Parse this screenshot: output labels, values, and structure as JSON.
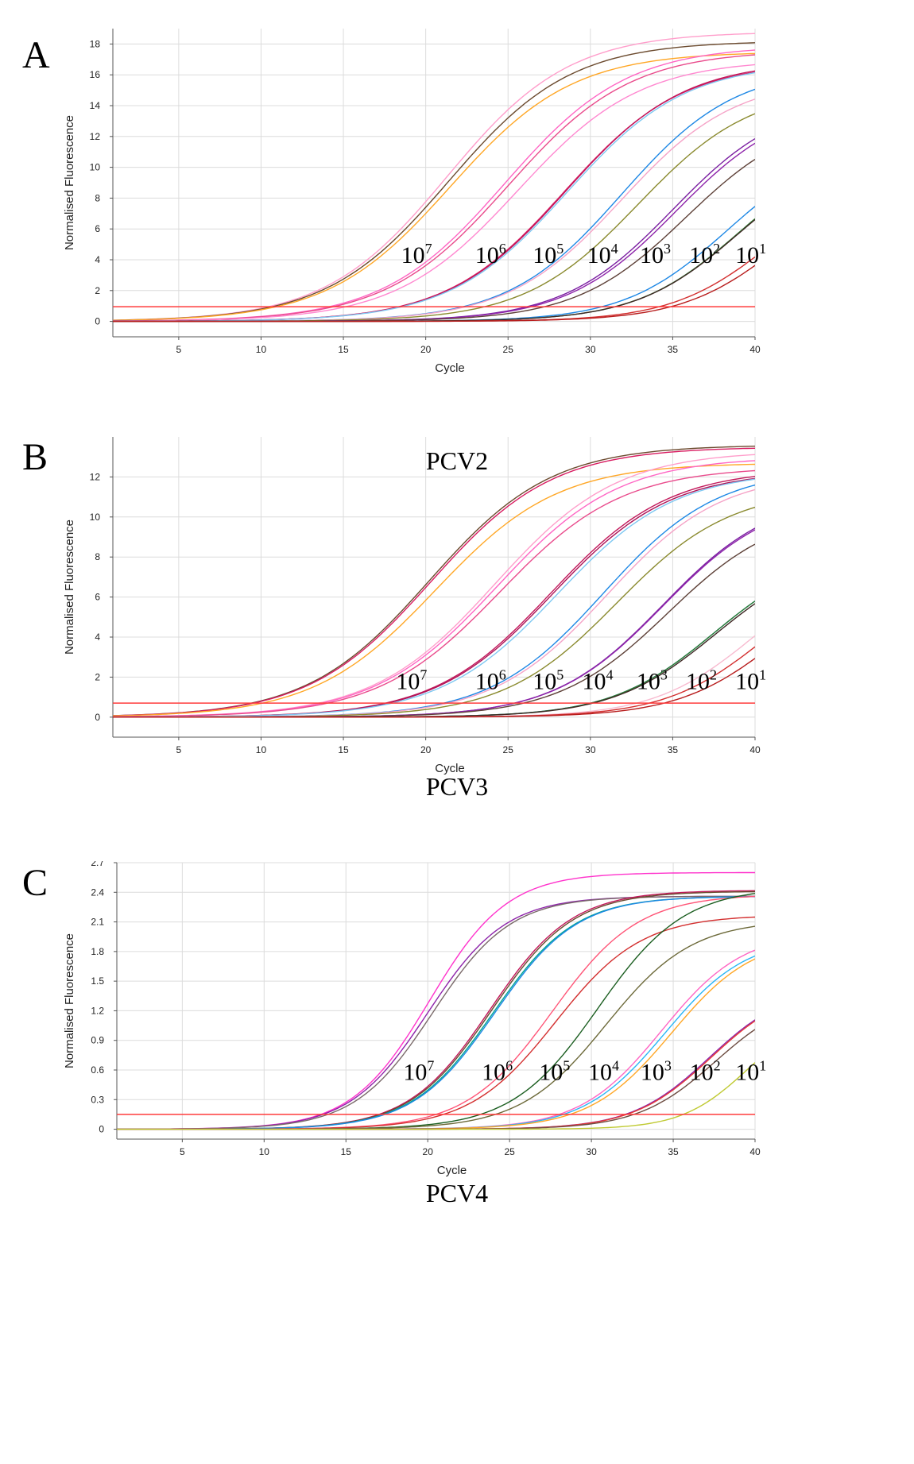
{
  "chart_data": [
    {
      "type": "line",
      "panel_label": "A",
      "title": "PCV2",
      "xlabel": "Cycle",
      "ylabel": "Normalised Fluorescence",
      "xlim": [
        1,
        40
      ],
      "ylim": [
        -1,
        19
      ],
      "xticks": [
        5,
        10,
        15,
        20,
        25,
        30,
        35,
        40
      ],
      "yticks": [
        0,
        2,
        4,
        6,
        8,
        10,
        12,
        14,
        16,
        18
      ],
      "grid": true,
      "threshold": 0.95,
      "threshold_color": "#ff3b3b",
      "dilution_labels": [
        {
          "base": "10",
          "exp": "7",
          "x": 18.5,
          "y": 3.8
        },
        {
          "base": "10",
          "exp": "6",
          "x": 23.0,
          "y": 3.8
        },
        {
          "base": "10",
          "exp": "5",
          "x": 26.5,
          "y": 3.8
        },
        {
          "base": "10",
          "exp": "4",
          "x": 29.8,
          "y": 3.8
        },
        {
          "base": "10",
          "exp": "3",
          "x": 33.0,
          "y": 3.8
        },
        {
          "base": "10",
          "exp": "2",
          "x": 36.0,
          "y": 3.8
        },
        {
          "base": "10",
          "exp": "1",
          "x": 38.8,
          "y": 3.8
        }
      ],
      "series": [
        {
          "name": "10^7 a",
          "color": "#ff9ecb",
          "plateau": 18.8,
          "midpoint": 21.3,
          "slope": 0.27
        },
        {
          "name": "10^7 b",
          "color": "#6b4a2e",
          "plateau": 18.2,
          "midpoint": 21.4,
          "slope": 0.27
        },
        {
          "name": "10^7 c",
          "color": "#ffa726",
          "plateau": 17.5,
          "midpoint": 21.5,
          "slope": 0.27
        },
        {
          "name": "10^6 a",
          "color": "#ff66c4",
          "plateau": 17.9,
          "midpoint": 24.8,
          "slope": 0.27
        },
        {
          "name": "10^6 b",
          "color": "#e94b8c",
          "plateau": 17.6,
          "midpoint": 25.0,
          "slope": 0.27
        },
        {
          "name": "10^6 c",
          "color": "#ff88d0",
          "plateau": 17.0,
          "midpoint": 25.6,
          "slope": 0.27
        },
        {
          "name": "10^5 a",
          "color": "#d81b60",
          "plateau": 16.8,
          "midpoint": 28.4,
          "slope": 0.28
        },
        {
          "name": "10^5 b",
          "color": "#c2185b",
          "plateau": 16.9,
          "midpoint": 28.5,
          "slope": 0.28
        },
        {
          "name": "10^5 c",
          "color": "#7ec8f2",
          "plateau": 16.8,
          "midpoint": 28.6,
          "slope": 0.28
        },
        {
          "name": "10^4 a",
          "color": "#1e88e5",
          "plateau": 16.5,
          "midpoint": 31.9,
          "slope": 0.29
        },
        {
          "name": "10^4 b",
          "color": "#f5a3c7",
          "plateau": 15.8,
          "midpoint": 31.9,
          "slope": 0.29
        },
        {
          "name": "10^4 c",
          "color": "#8a8a2e",
          "plateau": 15.2,
          "midpoint": 32.9,
          "slope": 0.29
        },
        {
          "name": "10^3 a",
          "color": "#7b1fa2",
          "plateau": 14.5,
          "midpoint": 35.0,
          "slope": 0.3
        },
        {
          "name": "10^3 b",
          "color": "#8e24aa",
          "plateau": 14.3,
          "midpoint": 35.2,
          "slope": 0.3
        },
        {
          "name": "10^3 c",
          "color": "#5d4037",
          "plateau": 13.5,
          "midpoint": 35.8,
          "slope": 0.3
        },
        {
          "name": "10^2 a",
          "color": "#1e88e5",
          "plateau": 11.8,
          "midpoint": 38.3,
          "slope": 0.32
        },
        {
          "name": "10^2 b",
          "color": "#2e7d32",
          "plateau": 11.5,
          "midpoint": 39.0,
          "slope": 0.32
        },
        {
          "name": "10^2 c",
          "color": "#3e2723",
          "plateau": 11.4,
          "midpoint": 39.0,
          "slope": 0.32
        },
        {
          "name": "10^1 a",
          "color": "#d32f2f",
          "plateau": 10.0,
          "midpoint": 41.0,
          "slope": 0.33
        },
        {
          "name": "10^1 b",
          "color": "#b71c1c",
          "plateau": 10.0,
          "midpoint": 41.7,
          "slope": 0.33
        }
      ]
    },
    {
      "type": "line",
      "panel_label": "B",
      "title": "PCV3",
      "xlabel": "Cycle",
      "ylabel": "Normalised Fluorescence",
      "xlim": [
        1,
        40
      ],
      "ylim": [
        -1,
        14
      ],
      "xticks": [
        5,
        10,
        15,
        20,
        25,
        30,
        35,
        40
      ],
      "yticks": [
        0,
        2,
        4,
        6,
        8,
        10,
        12
      ],
      "grid": true,
      "threshold": 0.7,
      "threshold_color": "#ff3b3b",
      "dilution_labels": [
        {
          "base": "10",
          "exp": "7",
          "x": 18.2,
          "y": 1.4
        },
        {
          "base": "10",
          "exp": "6",
          "x": 23.0,
          "y": 1.4
        },
        {
          "base": "10",
          "exp": "5",
          "x": 26.5,
          "y": 1.4
        },
        {
          "base": "10",
          "exp": "4",
          "x": 29.5,
          "y": 1.4
        },
        {
          "base": "10",
          "exp": "3",
          "x": 32.8,
          "y": 1.4
        },
        {
          "base": "10",
          "exp": "2",
          "x": 35.8,
          "y": 1.4
        },
        {
          "base": "10",
          "exp": "1",
          "x": 38.8,
          "y": 1.4
        }
      ],
      "series": [
        {
          "name": "10^7 a",
          "color": "#6b4a2e",
          "plateau": 13.6,
          "midpoint": 20.2,
          "slope": 0.27
        },
        {
          "name": "10^7 b",
          "color": "#d81b60",
          "plateau": 13.5,
          "midpoint": 20.3,
          "slope": 0.27
        },
        {
          "name": "10^7 c",
          "color": "#ffa726",
          "plateau": 12.7,
          "midpoint": 20.6,
          "slope": 0.27
        },
        {
          "name": "10^6 a",
          "color": "#ff9ecb",
          "plateau": 13.3,
          "midpoint": 24.2,
          "slope": 0.27
        },
        {
          "name": "10^6 b",
          "color": "#ff66c4",
          "plateau": 13.0,
          "midpoint": 24.3,
          "slope": 0.27
        },
        {
          "name": "10^6 c",
          "color": "#e94b8c",
          "plateau": 12.5,
          "midpoint": 24.5,
          "slope": 0.27
        },
        {
          "name": "10^5 a",
          "color": "#c2185b",
          "plateau": 12.4,
          "midpoint": 27.6,
          "slope": 0.28
        },
        {
          "name": "10^5 b",
          "color": "#ad1457",
          "plateau": 12.3,
          "midpoint": 27.7,
          "slope": 0.28
        },
        {
          "name": "10^5 c",
          "color": "#7ec8f2",
          "plateau": 12.3,
          "midpoint": 28.0,
          "slope": 0.28
        },
        {
          "name": "10^4 a",
          "color": "#1e88e5",
          "plateau": 12.4,
          "midpoint": 30.8,
          "slope": 0.29
        },
        {
          "name": "10^4 b",
          "color": "#f5a3c7",
          "plateau": 12.2,
          "midpoint": 31.0,
          "slope": 0.29
        },
        {
          "name": "10^4 c",
          "color": "#8a8a2e",
          "plateau": 11.4,
          "midpoint": 31.6,
          "slope": 0.29
        },
        {
          "name": "10^3 a",
          "color": "#7b1fa2",
          "plateau": 11.2,
          "midpoint": 34.4,
          "slope": 0.3
        },
        {
          "name": "10^3 b",
          "color": "#8e24aa",
          "plateau": 11.1,
          "midpoint": 34.4,
          "slope": 0.3
        },
        {
          "name": "10^3 c",
          "color": "#5d4037",
          "plateau": 10.4,
          "midpoint": 34.7,
          "slope": 0.3
        },
        {
          "name": "10^2 a",
          "color": "#1e88e5",
          "plateau": 8.4,
          "midpoint": 37.5,
          "slope": 0.32
        },
        {
          "name": "10^2 b",
          "color": "#2e7d32",
          "plateau": 8.4,
          "midpoint": 37.5,
          "slope": 0.32
        },
        {
          "name": "10^2 c",
          "color": "#3e2723",
          "plateau": 8.3,
          "midpoint": 37.6,
          "slope": 0.32
        },
        {
          "name": "10^1 a",
          "color": "#f8bbd0",
          "plateau": 8.0,
          "midpoint": 39.9,
          "slope": 0.33
        },
        {
          "name": "10^1 b",
          "color": "#d32f2f",
          "plateau": 7.8,
          "midpoint": 40.6,
          "slope": 0.33
        },
        {
          "name": "10^1 c",
          "color": "#b71c1c",
          "plateau": 7.6,
          "midpoint": 41.4,
          "slope": 0.33
        }
      ]
    },
    {
      "type": "line",
      "panel_label": "C",
      "title": "PCV4",
      "xlabel": "Cycle",
      "ylabel": "Normalised Fluorescence",
      "xlim": [
        1,
        40
      ],
      "ylim": [
        -0.1,
        2.7
      ],
      "xticks": [
        5,
        10,
        15,
        20,
        25,
        30,
        35,
        40
      ],
      "yticks": [
        0,
        0.3,
        0.6,
        0.9,
        1.2,
        1.5,
        1.8,
        2.1,
        2.4,
        2.7
      ],
      "ytick_labels": [
        "0",
        "0.3",
        "0.6",
        "0.9",
        "1.2",
        "1.5",
        "1.8",
        "2.1",
        "2.4",
        "2.7"
      ],
      "grid": true,
      "threshold": 0.15,
      "threshold_color": "#ff3b3b",
      "dilution_labels": [
        {
          "base": "10",
          "exp": "7",
          "x": 18.5,
          "y": 0.5
        },
        {
          "base": "10",
          "exp": "6",
          "x": 23.3,
          "y": 0.5
        },
        {
          "base": "10",
          "exp": "5",
          "x": 26.8,
          "y": 0.5
        },
        {
          "base": "10",
          "exp": "4",
          "x": 29.8,
          "y": 0.5
        },
        {
          "base": "10",
          "exp": "3",
          "x": 33.0,
          "y": 0.5
        },
        {
          "base": "10",
          "exp": "2",
          "x": 36.0,
          "y": 0.5
        },
        {
          "base": "10",
          "exp": "1",
          "x": 38.8,
          "y": 0.5
        }
      ],
      "series": [
        {
          "name": "10^7 a",
          "color": "#ff33cc",
          "plateau": 2.6,
          "midpoint": 20.1,
          "slope": 0.42
        },
        {
          "name": "10^7 b",
          "color": "#8e24aa",
          "plateau": 2.36,
          "midpoint": 20.0,
          "slope": 0.42
        },
        {
          "name": "10^7 c",
          "color": "#7a6a6a",
          "plateau": 2.36,
          "midpoint": 20.3,
          "slope": 0.42
        },
        {
          "name": "10^6 a",
          "color": "#c2185b",
          "plateau": 2.42,
          "midpoint": 23.8,
          "slope": 0.4
        },
        {
          "name": "10^6 b",
          "color": "#6b4a2e",
          "plateau": 2.41,
          "midpoint": 23.9,
          "slope": 0.4
        },
        {
          "name": "10^6 c",
          "color": "#00a693",
          "plateau": 2.36,
          "midpoint": 24.0,
          "slope": 0.4
        },
        {
          "name": "10^6 d",
          "color": "#1e88e5",
          "plateau": 2.36,
          "midpoint": 24.1,
          "slope": 0.4
        },
        {
          "name": "10^5 a",
          "color": "#ff5577",
          "plateau": 2.38,
          "midpoint": 27.6,
          "slope": 0.38
        },
        {
          "name": "10^5 b",
          "color": "#d32f2f",
          "plateau": 2.17,
          "midpoint": 27.8,
          "slope": 0.38
        },
        {
          "name": "10^4 a",
          "color": "#1b5e20",
          "plateau": 2.45,
          "midpoint": 30.4,
          "slope": 0.38
        },
        {
          "name": "10^4 b",
          "color": "#6d6a3a",
          "plateau": 2.12,
          "midpoint": 30.9,
          "slope": 0.38
        },
        {
          "name": "10^3 a",
          "color": "#ff66c4",
          "plateau": 2.0,
          "midpoint": 34.3,
          "slope": 0.4
        },
        {
          "name": "10^3 b",
          "color": "#29b6f6",
          "plateau": 1.95,
          "midpoint": 34.5,
          "slope": 0.4
        },
        {
          "name": "10^3 c",
          "color": "#ffa726",
          "plateau": 1.95,
          "midpoint": 34.9,
          "slope": 0.4
        },
        {
          "name": "10^2 a",
          "color": "#8e24aa",
          "plateau": 1.45,
          "midpoint": 37.2,
          "slope": 0.42
        },
        {
          "name": "10^2 b",
          "color": "#e53935",
          "plateau": 1.45,
          "midpoint": 37.3,
          "slope": 0.42
        },
        {
          "name": "10^2 c",
          "color": "#6d4c41",
          "plateau": 1.38,
          "midpoint": 37.6,
          "slope": 0.42
        },
        {
          "name": "10^1 a",
          "color": "#c0ca33",
          "plateau": 1.2,
          "midpoint": 39.5,
          "slope": 0.5
        }
      ]
    }
  ]
}
